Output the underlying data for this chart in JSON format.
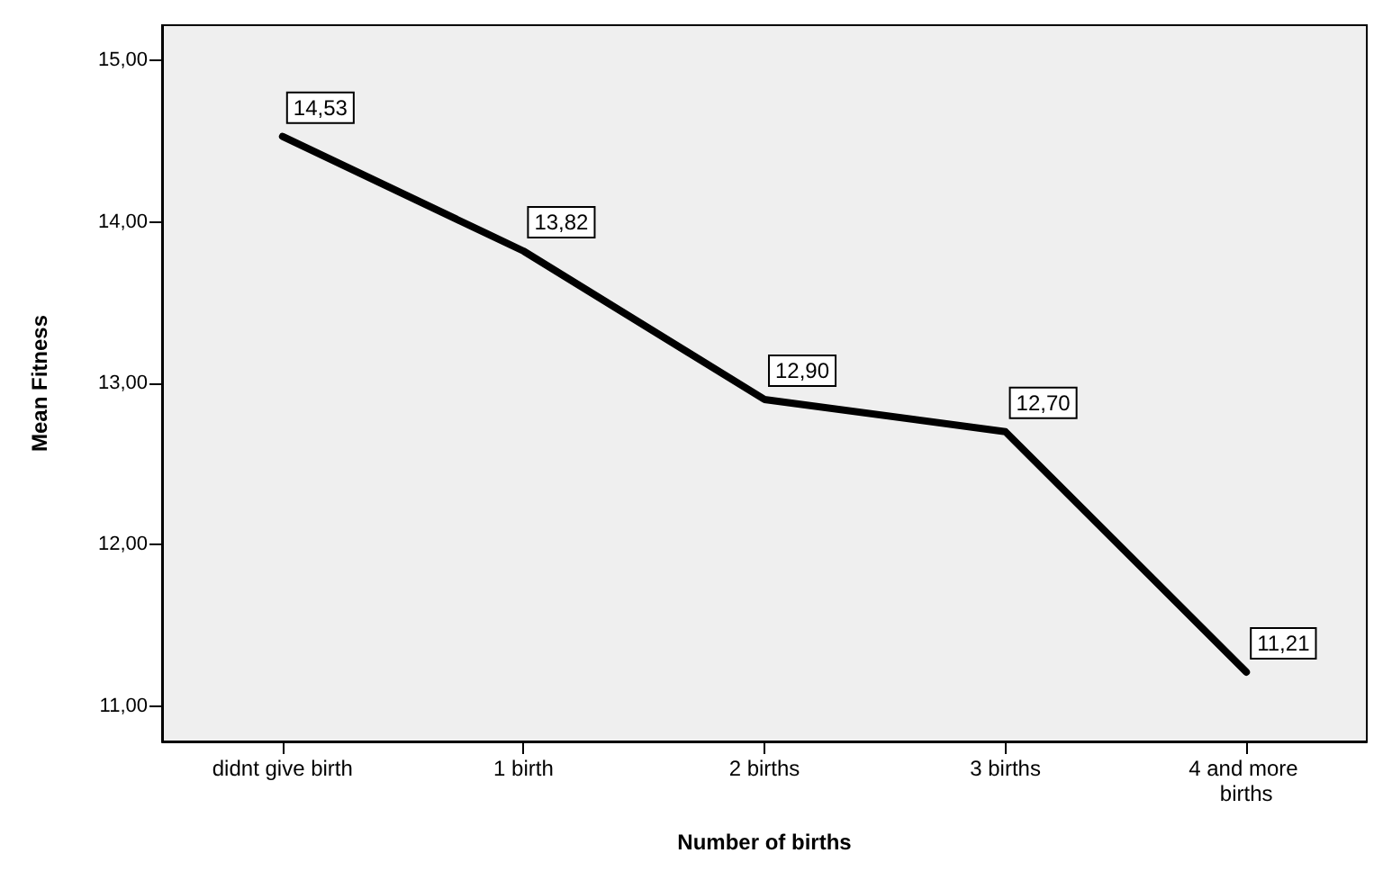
{
  "chart_data": {
    "type": "line",
    "xlabel": "Number of births",
    "ylabel": "Mean Fitness",
    "categories": [
      "didnt give birth",
      "1 birth",
      "2 births",
      "3 births",
      "4 and more births"
    ],
    "series": [
      {
        "color": "#000000",
        "values": [
          14.53,
          13.82,
          12.9,
          12.7,
          11.21
        ],
        "value_labels": [
          "14,53",
          "13,82",
          "12,90",
          "12,70",
          "11,21"
        ]
      }
    ],
    "ylim": [
      10.78,
      15.22
    ],
    "yticks": [
      {
        "value": 11,
        "label": "11,00"
      },
      {
        "value": 12,
        "label": "12,00"
      },
      {
        "value": 13,
        "label": "13,00"
      },
      {
        "value": 14,
        "label": "14,00"
      },
      {
        "value": 15,
        "label": "15,00"
      }
    ],
    "grid": false,
    "marker": "none",
    "line_style": "solid"
  }
}
